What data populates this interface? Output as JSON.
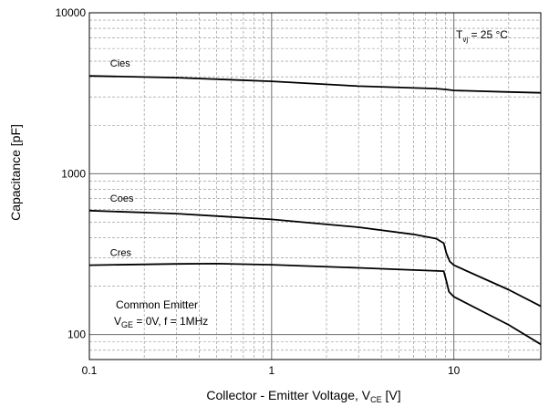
{
  "chart_data": {
    "type": "line",
    "x_scale": "log",
    "y_scale": "log",
    "xlim": [
      0.1,
      30
    ],
    "ylim": [
      70,
      10000
    ],
    "x_ticks": [
      {
        "value": 0.1,
        "label": "0.1"
      },
      {
        "value": 1,
        "label": "1"
      },
      {
        "value": 10,
        "label": "10"
      }
    ],
    "y_ticks": [
      {
        "value": 100,
        "label": "100"
      },
      {
        "value": 1000,
        "label": "1000"
      },
      {
        "value": 10000,
        "label": "10000"
      }
    ],
    "xlabel": {
      "main": "Collector - Emitter Voltage, V",
      "sub": "CE",
      "unit": "[V]"
    },
    "ylabel": "Capacitance [pF]",
    "grid": {
      "major": true,
      "minor_dashed": true
    },
    "annotations": {
      "temperature": {
        "prefix": "T",
        "sub": "vj",
        "value": " = 25 ",
        "unit": "°C"
      },
      "condition_line1": "Common Emitter",
      "condition_line2": {
        "prefix": "V",
        "sub": "GE",
        "rest": " = 0V, f  = 1MHz"
      }
    },
    "series": [
      {
        "name": "Cies",
        "color": "#000000",
        "points": [
          [
            0.1,
            4050
          ],
          [
            0.3,
            3950
          ],
          [
            1,
            3750
          ],
          [
            3,
            3500
          ],
          [
            8,
            3380
          ],
          [
            9,
            3340
          ],
          [
            10,
            3290
          ],
          [
            20,
            3220
          ],
          [
            30,
            3180
          ]
        ]
      },
      {
        "name": "Coes",
        "color": "#000000",
        "points": [
          [
            0.1,
            590
          ],
          [
            0.3,
            565
          ],
          [
            1,
            520
          ],
          [
            3,
            465
          ],
          [
            6,
            420
          ],
          [
            8,
            395
          ],
          [
            8.8,
            370
          ],
          [
            9.1,
            320
          ],
          [
            9.5,
            285
          ],
          [
            10,
            270
          ],
          [
            20,
            190
          ],
          [
            30,
            150
          ]
        ]
      },
      {
        "name": "Cres",
        "color": "#000000",
        "points": [
          [
            0.1,
            270
          ],
          [
            0.3,
            275
          ],
          [
            0.5,
            276
          ],
          [
            1,
            272
          ],
          [
            3,
            260
          ],
          [
            6,
            252
          ],
          [
            8.8,
            248
          ],
          [
            9.1,
            215
          ],
          [
            9.4,
            185
          ],
          [
            10,
            172
          ],
          [
            20,
            115
          ],
          [
            30,
            87
          ]
        ]
      }
    ]
  }
}
